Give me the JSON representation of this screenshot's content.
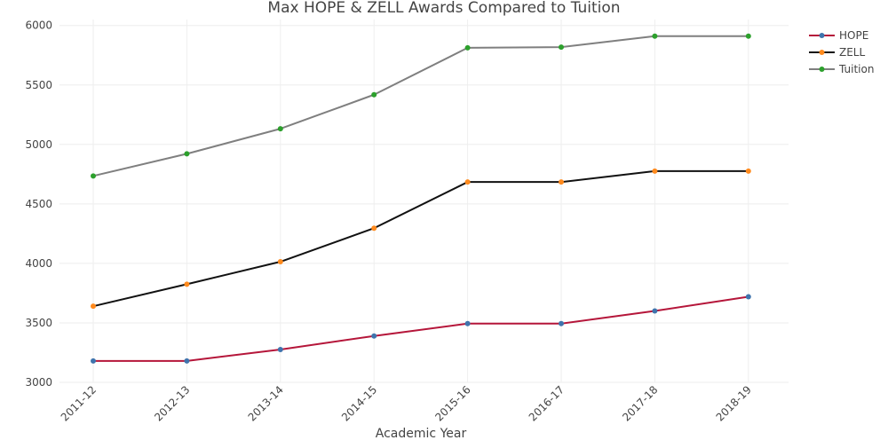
{
  "chart_data": {
    "type": "line",
    "title": "Max HOPE & ZELL Awards Compared to Tuition",
    "xlabel": "Academic Year",
    "ylabel": "",
    "categories": [
      "2011-12",
      "2012-13",
      "2013-14",
      "2014-15",
      "2015-16",
      "2016-17",
      "2017-18",
      "2018-19"
    ],
    "ylim": [
      3000,
      6050
    ],
    "yticks": [
      3000,
      3500,
      4000,
      4500,
      5000,
      5500,
      6000
    ],
    "grid": true,
    "legend_position": "top-right",
    "series": [
      {
        "name": "HOPE",
        "values": [
          3180,
          3180,
          3276,
          3390,
          3494,
          3494,
          3600,
          3720
        ],
        "line_color": "#b5163a",
        "marker_color": "#3f74ad"
      },
      {
        "name": "ZELL",
        "values": [
          3640,
          3825,
          4014,
          4296,
          4684,
          4684,
          4776,
          4776
        ],
        "line_color": "#111111",
        "marker_color": "#ff8a1d"
      },
      {
        "name": "Tuition",
        "values": [
          4735,
          4921,
          5132,
          5418,
          5812,
          5818,
          5910,
          5910
        ],
        "line_color": "#7f7f7f",
        "marker_color": "#2ca02c"
      }
    ]
  }
}
